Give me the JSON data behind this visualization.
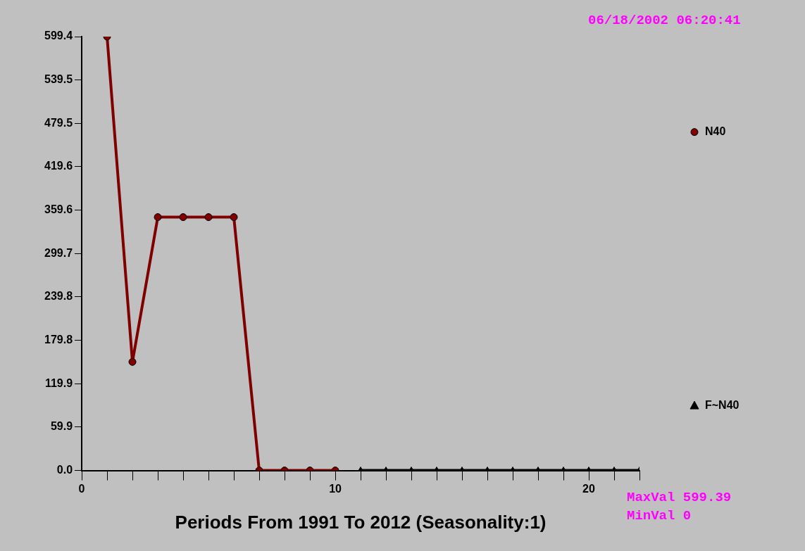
{
  "chart_data": {
    "type": "line",
    "xlabel": "Periods From 1991 To 2012 (Seasonality:1)",
    "annotations": [
      "06/18/2002 06:20:41",
      "MaxVal 599.39",
      "MinVal 0"
    ],
    "series": [
      {
        "name": "N40",
        "color": "#800000",
        "marker": "circle",
        "x": [
          1,
          2,
          3,
          4,
          5,
          6,
          7,
          8,
          9,
          10
        ],
        "values": [
          599.4,
          150,
          350,
          350,
          350,
          350,
          0,
          0,
          0,
          0
        ]
      },
      {
        "name": "F~N40",
        "color": "#000000",
        "marker": "triangle",
        "x": [
          11,
          12,
          13,
          14,
          15,
          16,
          17,
          18,
          19,
          20,
          21,
          22
        ],
        "values": [
          0,
          0,
          0,
          0,
          0,
          0,
          0,
          0,
          0,
          0,
          0,
          0
        ]
      }
    ],
    "xlim": [
      0,
      22
    ],
    "xticks": [
      0,
      {
        "value": 1,
        "label": null
      },
      {
        "value": 2,
        "label": null
      },
      {
        "value": 3,
        "label": null
      },
      {
        "value": 4,
        "label": null
      },
      {
        "value": 5,
        "label": null
      },
      {
        "value": 6,
        "label": null
      },
      {
        "value": 7,
        "label": null
      },
      {
        "value": 8,
        "label": null
      },
      {
        "value": 9,
        "label": null
      },
      10,
      {
        "value": 11,
        "label": null
      },
      {
        "value": 12,
        "label": null
      },
      {
        "value": 13,
        "label": null
      },
      {
        "value": 14,
        "label": null
      },
      {
        "value": 15,
        "label": null
      },
      {
        "value": 16,
        "label": null
      },
      {
        "value": 17,
        "label": null
      },
      {
        "value": 18,
        "label": null
      },
      {
        "value": 19,
        "label": null
      },
      20,
      {
        "value": 21,
        "label": null
      },
      {
        "value": 22,
        "label": null
      }
    ],
    "ylim": [
      0,
      599.4
    ],
    "yticks": [
      {
        "value": 0,
        "label": "0.0"
      },
      59.9,
      119.9,
      179.8,
      239.8,
      299.7,
      359.6,
      419.6,
      479.5,
      539.5,
      599.4
    ],
    "grid": false,
    "legend": "right"
  }
}
